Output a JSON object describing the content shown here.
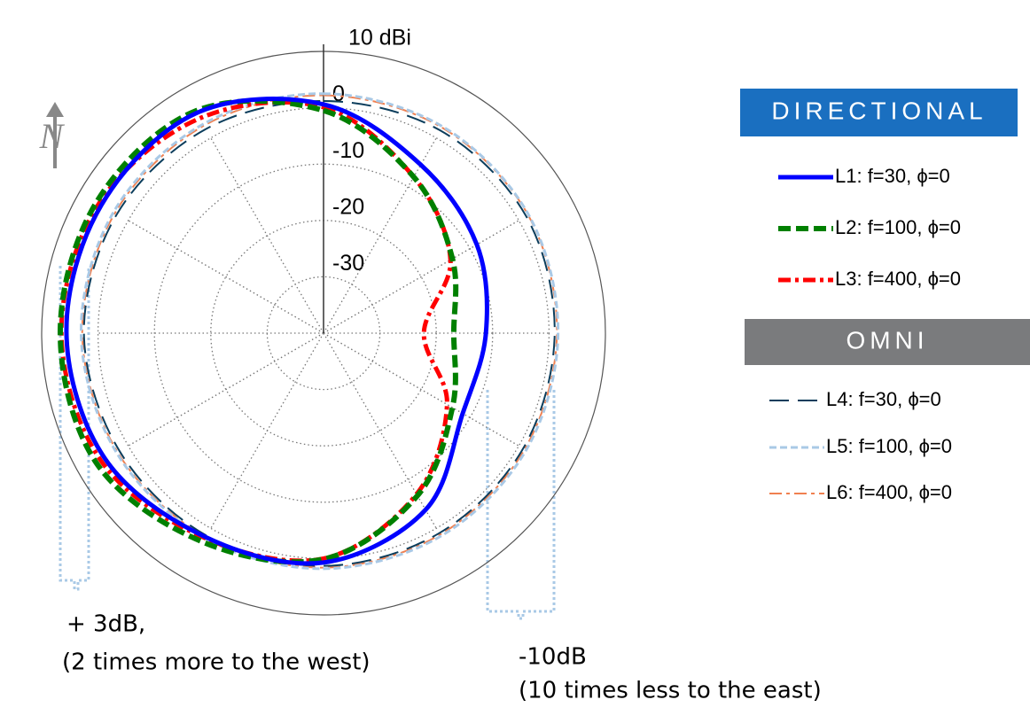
{
  "chart_data": {
    "type": "polar",
    "rlim": [
      -40,
      10
    ],
    "rticks": [
      {
        "value": 10,
        "label": "10 dBi"
      },
      0,
      -10,
      -20,
      -30
    ],
    "theta": [
      0,
      30,
      60,
      90,
      120,
      150,
      180,
      210,
      240,
      270,
      300,
      330
    ],
    "grid": true,
    "series": [
      {
        "name": "L1: f=30, ϕ=0",
        "color": "#0000ff",
        "dash": "solid",
        "values": [
          0.6,
          -5.5,
          -8.6,
          -11.2,
          -11.5,
          -3.8,
          0.7,
          1.8,
          4.7,
          5.6,
          5.5,
          5.1
        ]
      },
      {
        "name": "L2: f=100, ϕ=0",
        "color": "#008000",
        "dash": "dash",
        "values": [
          -0.5,
          -8,
          -13.6,
          -16.9,
          -13.6,
          -6.7,
          0.1,
          2.8,
          6.4,
          6.7,
          6.5,
          5.5
        ]
      },
      {
        "name": "L3: f=400, ϕ=0",
        "color": "#ff0000",
        "dash": "dashdot",
        "values": [
          0.1,
          -8,
          -14,
          -22.2,
          -14.7,
          -7,
          0,
          2,
          5.5,
          6.5,
          6,
          4
        ]
      },
      {
        "name": "L4: f=30, ϕ=0",
        "color": "#0b3d5c",
        "dash": "longdash",
        "values": [
          1.2,
          1.5,
          1.5,
          1,
          0.9,
          1,
          1.3,
          1.5,
          1.8,
          2.5,
          2.3,
          1.8
        ]
      },
      {
        "name": "L5: f=100, ϕ=0",
        "color": "#a9c9e6",
        "dash": "shortdash",
        "values": [
          2.5,
          2.3,
          2,
          1.6,
          1.5,
          1.6,
          1.8,
          2,
          2.4,
          3,
          3,
          2.8
        ]
      },
      {
        "name": "L6: f=400, ϕ=0",
        "color": "#f08050",
        "dash": "dashdot",
        "values": [
          2.2,
          2.1,
          1.9,
          1.4,
          1.2,
          1.3,
          1.6,
          1.8,
          2.2,
          2.8,
          2.7,
          2.5
        ]
      }
    ],
    "legend_headers": [
      "DIRECTIONAL",
      "OMNI"
    ],
    "north_label": "N",
    "annotations": [
      "+ 3dB,",
      "(2 times more to the west)",
      "-10dB",
      "(10 times less to the east)"
    ]
  }
}
